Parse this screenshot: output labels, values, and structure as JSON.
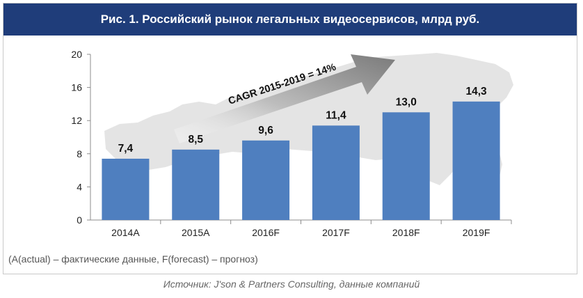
{
  "chart_data": {
    "type": "bar",
    "title": "Рис. 1. Российский рынок легальных видеосервисов, млрд руб.",
    "categories": [
      "2014A",
      "2015A",
      "2016F",
      "2017F",
      "2018F",
      "2019F"
    ],
    "values": [
      7.4,
      8.5,
      9.6,
      11.4,
      13.0,
      14.3
    ],
    "value_labels": [
      "7,4",
      "8,5",
      "9,6",
      "11,4",
      "13,0",
      "14,3"
    ],
    "ylim": [
      0,
      20
    ],
    "yticks": [
      0,
      4,
      8,
      12,
      16,
      20
    ],
    "xlabel": "",
    "ylabel": "",
    "grid": false,
    "annotation": "CAGR 2015-2019 = 14%",
    "bar_color": "#4f7fbf"
  },
  "note": "(A(actual) – фактические данные, F(forecast) – прогноз)",
  "source": "Источник: J'son & Partners Consulting, данные компаний",
  "colors": {
    "title_bg": "#1f3d7a",
    "map_bg": "#e3e3e3"
  }
}
